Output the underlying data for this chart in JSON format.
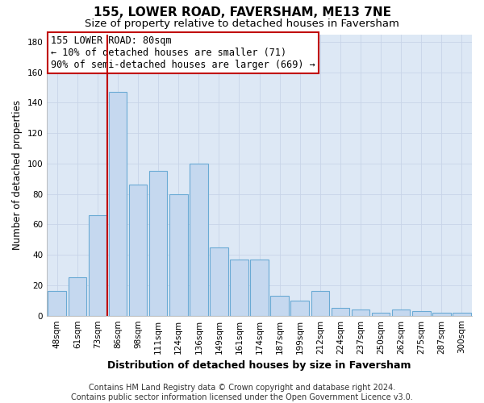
{
  "title1": "155, LOWER ROAD, FAVERSHAM, ME13 7NE",
  "title2": "Size of property relative to detached houses in Faversham",
  "xlabel": "Distribution of detached houses by size in Faversham",
  "ylabel": "Number of detached properties",
  "categories": [
    "48sqm",
    "61sqm",
    "73sqm",
    "86sqm",
    "98sqm",
    "111sqm",
    "124sqm",
    "136sqm",
    "149sqm",
    "161sqm",
    "174sqm",
    "187sqm",
    "199sqm",
    "212sqm",
    "224sqm",
    "237sqm",
    "250sqm",
    "262sqm",
    "275sqm",
    "287sqm",
    "300sqm"
  ],
  "values": [
    16,
    25,
    66,
    147,
    86,
    95,
    80,
    100,
    45,
    37,
    37,
    13,
    10,
    16,
    5,
    4,
    2,
    4,
    3,
    2,
    2
  ],
  "bar_color": "#c5d8ef",
  "bar_edge_color": "#6aaad4",
  "vline_color": "#c00000",
  "annotation_line1": "155 LOWER ROAD: 80sqm",
  "annotation_line2": "← 10% of detached houses are smaller (71)",
  "annotation_line3": "90% of semi-detached houses are larger (669) →",
  "annotation_box_color": "white",
  "annotation_box_edge": "#c00000",
  "ylim": [
    0,
    185
  ],
  "yticks": [
    0,
    20,
    40,
    60,
    80,
    100,
    120,
    140,
    160,
    180
  ],
  "grid_color": "#c8d4e8",
  "background_color": "#dde8f5",
  "footnote": "Contains HM Land Registry data © Crown copyright and database right 2024.\nContains public sector information licensed under the Open Government Licence v3.0.",
  "title1_fontsize": 11,
  "title2_fontsize": 9.5,
  "xlabel_fontsize": 9,
  "ylabel_fontsize": 8.5,
  "tick_fontsize": 7.5,
  "annotation_fontsize": 8.5,
  "footnote_fontsize": 7
}
